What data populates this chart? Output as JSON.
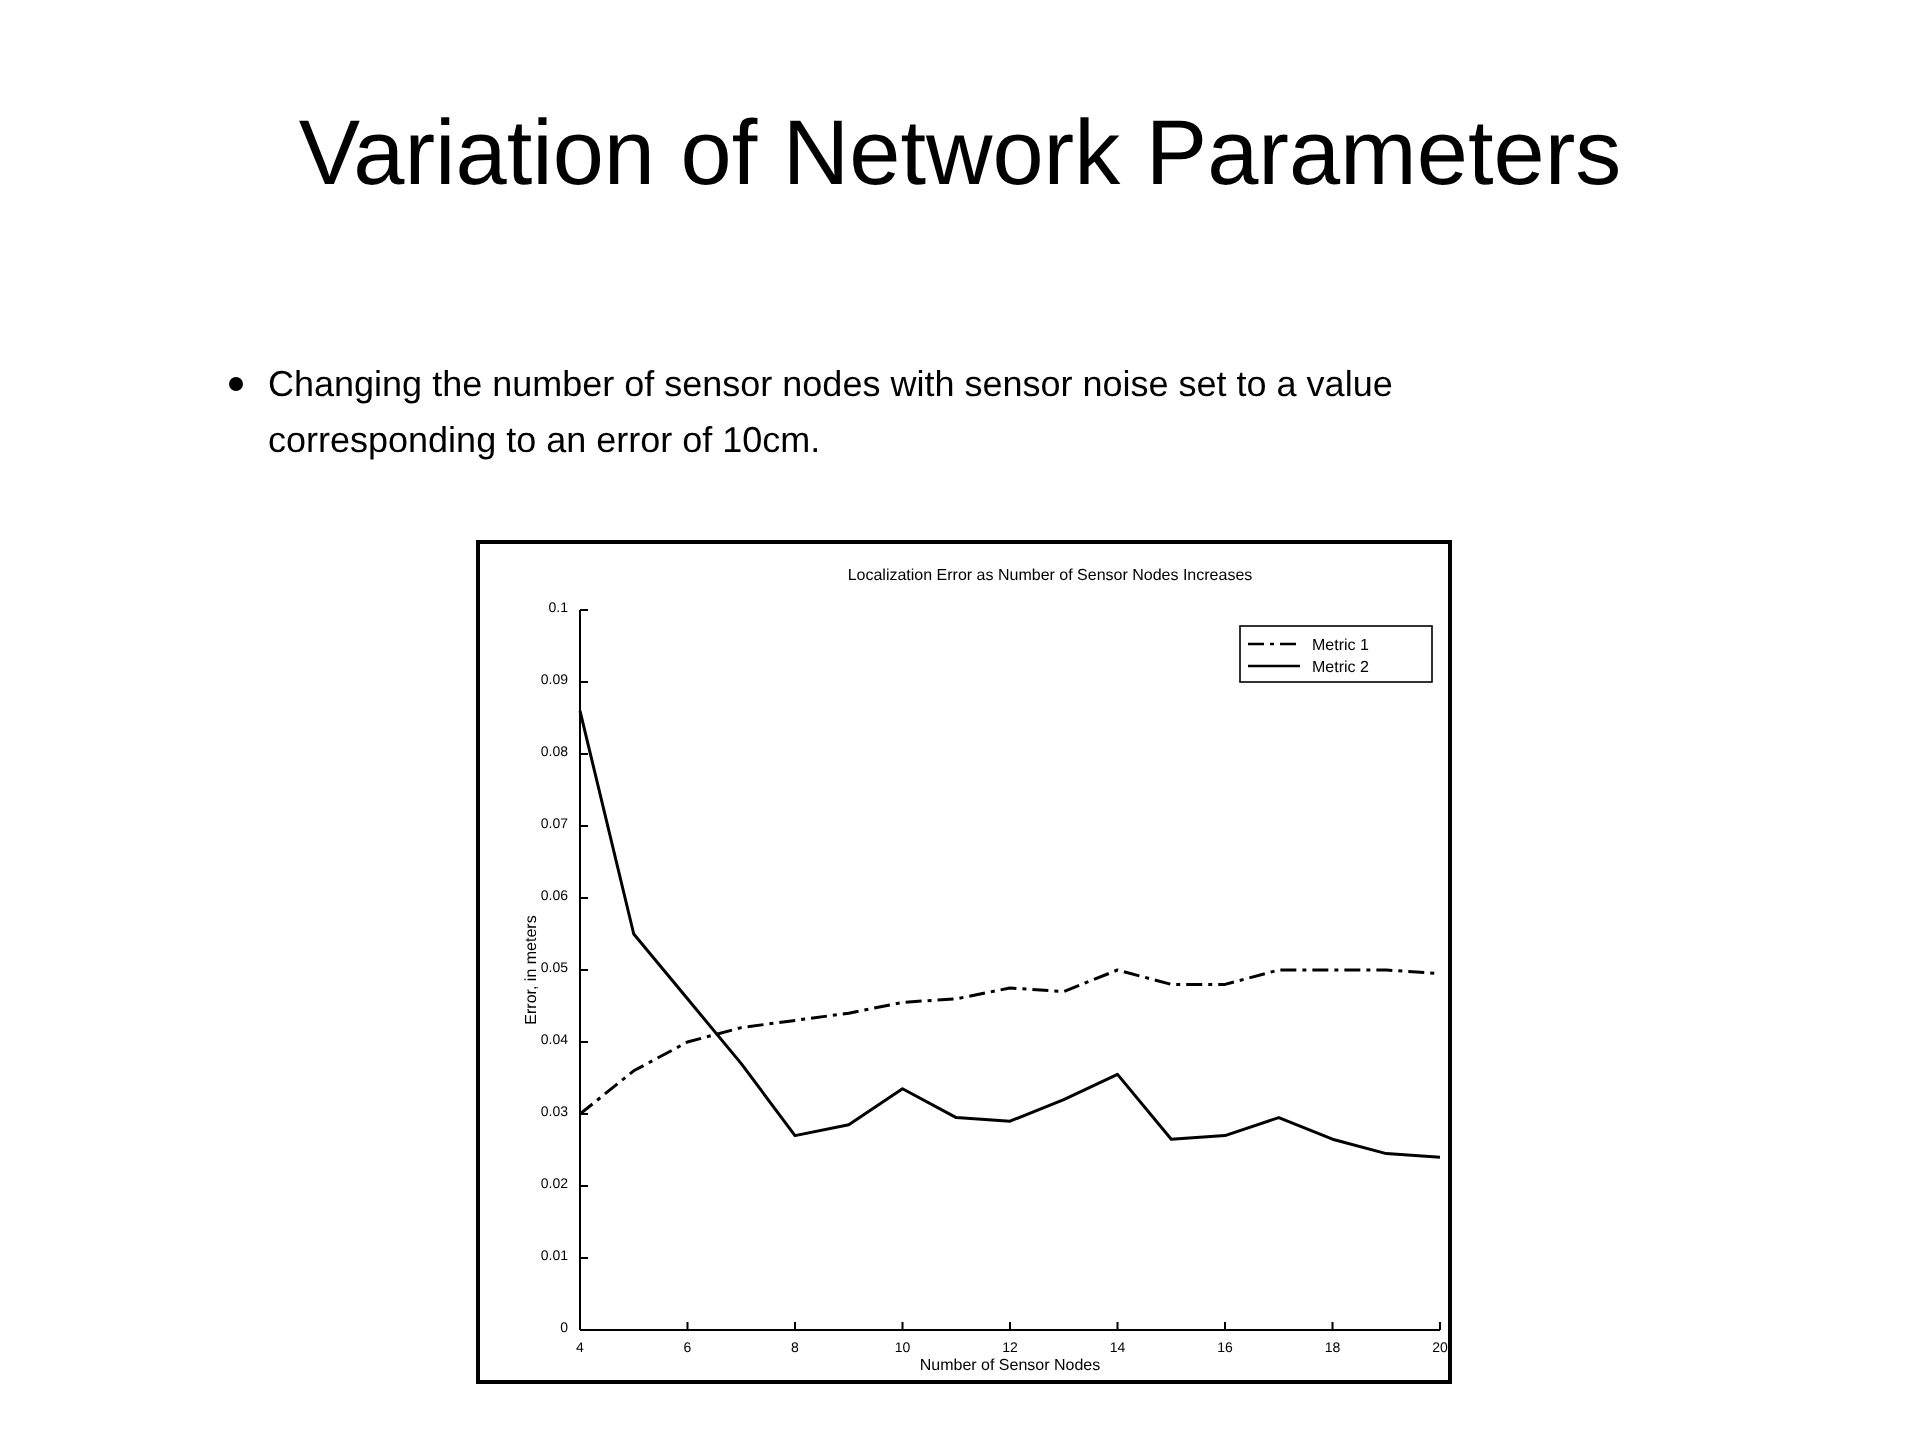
{
  "chart_data": {
    "type": "line",
    "title": "Variation of Network Parameters",
    "subtitle": "Changing the number of sensor nodes with sensor noise set to a value corresponding to an error of 10cm.",
    "annotations": [
      "Localization Error as Number of Sensor Nodes Increases"
    ],
    "xlabel": "Number of Sensor Nodes",
    "ylabel": "Error, in meters",
    "x": [
      4,
      5,
      6,
      7,
      8,
      9,
      10,
      11,
      12,
      13,
      14,
      15,
      16,
      17,
      18,
      19,
      20
    ],
    "series": [
      {
        "name": "Metric 1",
        "color": "#000000",
        "line_style": "dashed",
        "values": [
          0.03,
          0.036,
          0.04,
          0.042,
          0.043,
          0.044,
          0.0455,
          0.046,
          0.0475,
          0.047,
          0.05,
          0.048,
          0.048,
          0.05,
          0.05,
          0.05,
          0.0495
        ]
      },
      {
        "name": "Metric 2",
        "color": "#000000",
        "line_style": "solid",
        "values": [
          0.086,
          0.055,
          0.046,
          0.037,
          0.027,
          0.0285,
          0.0335,
          0.0295,
          0.029,
          0.032,
          0.0355,
          0.0265,
          0.027,
          0.0295,
          0.0265,
          0.0245,
          0.024
        ]
      }
    ],
    "xlim": [
      4,
      20
    ],
    "xticks": [
      4,
      6,
      8,
      10,
      12,
      14,
      16,
      18,
      20
    ],
    "ylim": [
      0,
      0.1
    ],
    "yticks": [
      0,
      0.01,
      0.02,
      0.03,
      0.04,
      0.05,
      0.06,
      0.07,
      0.08,
      0.09,
      0.1
    ],
    "legend": "top right",
    "grid": false,
    "marker": "none"
  }
}
